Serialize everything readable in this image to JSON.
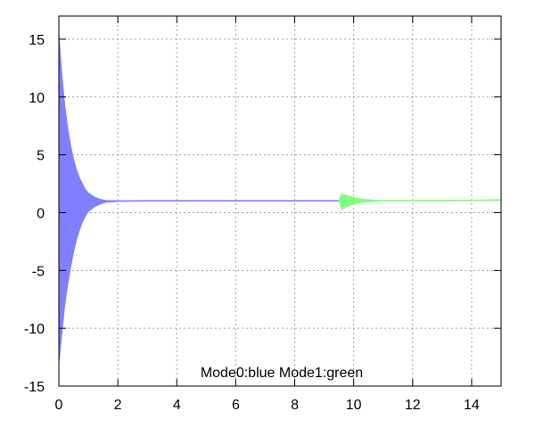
{
  "chart_data": {
    "type": "area",
    "xlim": [
      0,
      15
    ],
    "ylim": [
      -15,
      17
    ],
    "x_ticks": [
      0,
      2,
      4,
      6,
      8,
      10,
      12,
      14
    ],
    "y_ticks": [
      -15,
      -10,
      -5,
      0,
      5,
      10,
      15
    ],
    "grid": true,
    "annotation": "Mode0:blue Mode1:green",
    "series": [
      {
        "color": "#7f7fff",
        "x": [
          0.0,
          0.1,
          0.2,
          0.3,
          0.4,
          0.5,
          0.6,
          0.7,
          0.8,
          0.9,
          1.0,
          1.2,
          1.4,
          1.6,
          2.0,
          3.0,
          5.0,
          7.0,
          9.0,
          9.5
        ],
        "upper": [
          15.5,
          12.0,
          9.3,
          7.3,
          5.8,
          4.6,
          3.7,
          3.0,
          2.5,
          2.0,
          1.7,
          1.35,
          1.15,
          1.05,
          1.03,
          1.05,
          1.05,
          1.05,
          1.05,
          1.05
        ],
        "lower": [
          -13.0,
          -10.5,
          -8.0,
          -6.2,
          -4.7,
          -3.4,
          -2.3,
          -1.5,
          -0.8,
          -0.3,
          0.1,
          0.5,
          0.75,
          0.9,
          0.97,
          1.0,
          1.0,
          1.0,
          1.0,
          1.0
        ]
      },
      {
        "color": "#7fff7f",
        "x": [
          9.5,
          9.6,
          9.8,
          10.0,
          10.3,
          10.7,
          11.0,
          12.0,
          13.0,
          14.0,
          15.0
        ],
        "upper": [
          1.05,
          1.6,
          1.45,
          1.3,
          1.15,
          1.08,
          1.05,
          1.05,
          1.07,
          1.09,
          1.12
        ],
        "lower": [
          1.0,
          0.3,
          0.55,
          0.75,
          0.9,
          0.97,
          1.0,
          1.0,
          1.01,
          1.03,
          1.06
        ]
      }
    ]
  }
}
